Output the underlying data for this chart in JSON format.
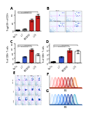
{
  "panel_a": {
    "ylabel": "% gp100+ of CD8+",
    "categories": [
      "No Tx",
      "IL-7",
      "MOCK/VV",
      "IL-15"
    ],
    "values": [
      1.5,
      3.0,
      14.0,
      19.0
    ],
    "errors": [
      0.3,
      0.5,
      1.8,
      2.5
    ],
    "bar_colors": [
      "#111111",
      "#888888",
      "#cc2222",
      "#cc2222"
    ],
    "ylim": [
      0,
      26
    ]
  },
  "panel_c": {
    "ylabel": "% of CD8+ T cells",
    "categories": [
      "No Tx",
      "IL-7",
      "MOCK/VV",
      "IL-15"
    ],
    "values": [
      1.0,
      6.5,
      14.0,
      9.0
    ],
    "errors": [
      0.2,
      0.9,
      1.5,
      1.2
    ],
    "bar_colors": [
      "#111111",
      "#3355cc",
      "#cc2222",
      "#ffffff"
    ],
    "ylim": [
      0,
      20
    ]
  },
  "panel_d": {
    "ylabel": "% of CD8+ T cells",
    "categories": [
      "No Tx",
      "IL-7",
      "MOCK/VV",
      "IL-15"
    ],
    "values": [
      0.8,
      3.0,
      6.0,
      5.5
    ],
    "errors": [
      0.15,
      0.4,
      0.7,
      0.8
    ],
    "bar_colors": [
      "#111111",
      "#3355cc",
      "#cc2222",
      "#ffffff"
    ],
    "ylim": [
      0,
      9
    ]
  },
  "flow_scatter_colors": [
    "#aaddff",
    "#55aaff",
    "#0055cc",
    "#55cc55",
    "#ccffcc",
    "#ffaaaa",
    "#ff5555",
    "#ccccff"
  ],
  "hist_colors_top": [
    "#ffcccc",
    "#ff9999",
    "#ff6666",
    "#ff3333",
    "#cc2222",
    "#aa1111",
    "#881111",
    "#ff8833"
  ],
  "hist_colors_bot": [
    "#cce5ff",
    "#99ccff",
    "#66aaff",
    "#3388ff",
    "#1155cc",
    "#0033aa",
    "#002288",
    "#33aacc"
  ],
  "bg_color": "#ffffff"
}
